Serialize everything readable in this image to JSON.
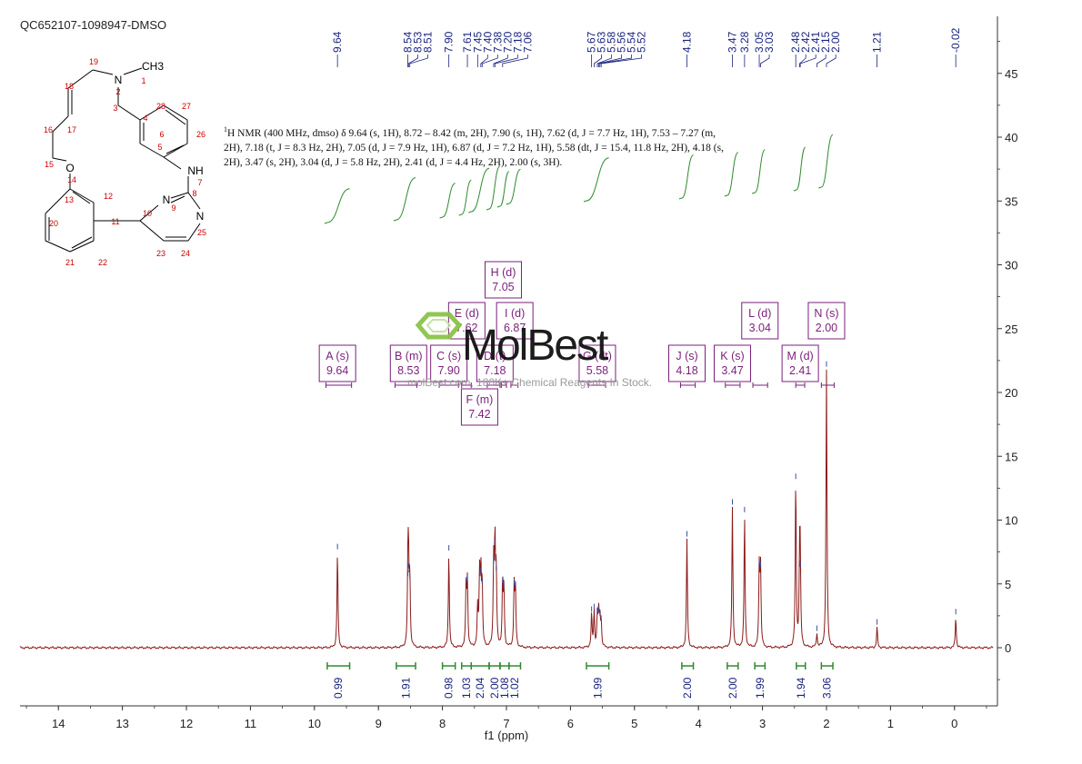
{
  "sample_id": "QC652107-1098947-DMSO",
  "description": {
    "nucleus_mark": "1",
    "text": "H NMR (400 MHz, dmso) δ 9.64 (s, 1H), 8.72 – 8.42 (m, 2H), 7.90 (s, 1H), 7.62 (d, J = 7.7 Hz, 1H), 7.53 – 7.27 (m, 2H), 7.18 (t, J = 8.3 Hz, 2H), 7.05 (d, J = 7.9 Hz, 1H), 6.87 (d, J = 7.2 Hz, 1H), 5.58 (dt, J = 15.4, 11.8 Hz, 2H), 4.18 (s, 2H), 3.47 (s, 2H), 3.04 (d, J = 5.8 Hz, 2H), 2.41 (d, J = 4.4 Hz, 2H), 2.00 (s, 3H)."
  },
  "watermark": {
    "brand": "MolBest",
    "tagline": "molBest.com, 180K+ Chemical Reagents In Stock."
  },
  "structure": {
    "atoms": [
      {
        "label": "CH3",
        "color": "#000000"
      },
      {
        "label": "N",
        "color": "#000000"
      },
      {
        "label": "NH",
        "color": "#000000"
      },
      {
        "label": "O",
        "color": "#000000"
      },
      {
        "label": "N",
        "color": "#000000"
      },
      {
        "label": "N",
        "color": "#000000"
      },
      {
        "label": "1",
        "color": "#cc0000"
      },
      {
        "label": "2",
        "color": "#cc0000"
      },
      {
        "label": "3",
        "color": "#cc0000"
      },
      {
        "label": "4",
        "color": "#cc0000"
      },
      {
        "label": "5",
        "color": "#cc0000"
      },
      {
        "label": "6",
        "color": "#cc0000"
      },
      {
        "label": "7",
        "color": "#cc0000"
      },
      {
        "label": "8",
        "color": "#cc0000"
      },
      {
        "label": "9",
        "color": "#cc0000"
      },
      {
        "label": "10",
        "color": "#cc0000"
      },
      {
        "label": "11",
        "color": "#cc0000"
      },
      {
        "label": "12",
        "color": "#cc0000"
      },
      {
        "label": "13",
        "color": "#cc0000"
      },
      {
        "label": "14",
        "color": "#cc0000"
      },
      {
        "label": "15",
        "color": "#cc0000"
      },
      {
        "label": "16",
        "color": "#cc0000"
      },
      {
        "label": "17",
        "color": "#cc0000"
      },
      {
        "label": "18",
        "color": "#cc0000"
      },
      {
        "label": "19",
        "color": "#cc0000"
      },
      {
        "label": "20",
        "color": "#cc0000"
      },
      {
        "label": "21",
        "color": "#cc0000"
      },
      {
        "label": "22",
        "color": "#cc0000"
      },
      {
        "label": "23",
        "color": "#cc0000"
      },
      {
        "label": "24",
        "color": "#cc0000"
      },
      {
        "label": "25",
        "color": "#cc0000"
      },
      {
        "label": "26",
        "color": "#cc0000"
      },
      {
        "label": "27",
        "color": "#cc0000"
      },
      {
        "label": "28",
        "color": "#cc0000"
      }
    ]
  },
  "chart_data": {
    "type": "line",
    "xlabel": "f1 (ppm)",
    "ylabel": "",
    "xlim": [
      14.6,
      -0.6
    ],
    "ylim": [
      -4.5,
      49
    ],
    "x_reversed": true,
    "x_ticks": [
      14,
      13,
      12,
      11,
      10,
      9,
      8,
      7,
      6,
      5,
      4,
      3,
      2,
      1,
      0
    ],
    "y_ticks": [
      0,
      5,
      10,
      15,
      20,
      25,
      30,
      35,
      40,
      45
    ],
    "colors": {
      "spectrum": "#8b1a1a",
      "integral": "#2e8b2e",
      "peak_label": "#1a237e",
      "multiplet": "#7b1f7b",
      "axis": "#333333"
    },
    "peak_labels": [
      "9.64",
      "8.54",
      "8.53",
      "8.51",
      "7.90",
      "7.61",
      "7.45",
      "7.40",
      "7.38",
      "7.20",
      "7.18",
      "7.06",
      "5.67",
      "5.63",
      "5.58",
      "5.56",
      "5.54",
      "5.52",
      "4.18",
      "3.47",
      "3.28",
      "3.05",
      "3.03",
      "2.48",
      "2.42",
      "2.41",
      "2.15",
      "2.00",
      "1.21",
      "-0.02"
    ],
    "series": [
      {
        "peaks": [
          {
            "shift": 9.64,
            "height": 7.5
          },
          {
            "shift": 8.54,
            "height": 5.4
          },
          {
            "shift": 8.53,
            "height": 6.0
          },
          {
            "shift": 8.51,
            "height": 5.2
          },
          {
            "shift": 7.9,
            "height": 7.4
          },
          {
            "shift": 7.63,
            "height": 4.9
          },
          {
            "shift": 7.61,
            "height": 5.0
          },
          {
            "shift": 7.45,
            "height": 3.1
          },
          {
            "shift": 7.42,
            "height": 5.4
          },
          {
            "shift": 7.4,
            "height": 5.6
          },
          {
            "shift": 7.38,
            "height": 4.8
          },
          {
            "shift": 7.2,
            "height": 6.4
          },
          {
            "shift": 7.18,
            "height": 7.8
          },
          {
            "shift": 7.16,
            "height": 5.8
          },
          {
            "shift": 7.06,
            "height": 4.9
          },
          {
            "shift": 7.04,
            "height": 4.5
          },
          {
            "shift": 6.88,
            "height": 4.7
          },
          {
            "shift": 6.86,
            "height": 4.6
          },
          {
            "shift": 5.67,
            "height": 2.6
          },
          {
            "shift": 5.63,
            "height": 2.8
          },
          {
            "shift": 5.58,
            "height": 2.4
          },
          {
            "shift": 5.56,
            "height": 2.6
          },
          {
            "shift": 5.54,
            "height": 2.3
          },
          {
            "shift": 5.52,
            "height": 1.9
          },
          {
            "shift": 4.18,
            "height": 8.5
          },
          {
            "shift": 3.47,
            "height": 11.0
          },
          {
            "shift": 3.28,
            "height": 10.4
          },
          {
            "shift": 3.05,
            "height": 6.3
          },
          {
            "shift": 3.03,
            "height": 6.1
          },
          {
            "shift": 2.48,
            "height": 13.0
          },
          {
            "shift": 2.42,
            "height": 6.2
          },
          {
            "shift": 2.41,
            "height": 6.1
          },
          {
            "shift": 2.15,
            "height": 1.1
          },
          {
            "shift": 2.0,
            "height": 21.8
          },
          {
            "shift": 1.21,
            "height": 1.6
          },
          {
            "shift": -0.02,
            "height": 2.4
          }
        ]
      }
    ],
    "integrals": [
      {
        "from": 9.8,
        "to": 9.45,
        "value": "0.99"
      },
      {
        "from": 8.72,
        "to": 8.42,
        "value": "1.91"
      },
      {
        "from": 8.0,
        "to": 7.8,
        "value": "0.98"
      },
      {
        "from": 7.7,
        "to": 7.55,
        "value": "1.03"
      },
      {
        "from": 7.55,
        "to": 7.27,
        "value": "2.04"
      },
      {
        "from": 7.27,
        "to": 7.1,
        "value": "2.00"
      },
      {
        "from": 7.1,
        "to": 6.96,
        "value": "1.08"
      },
      {
        "from": 6.96,
        "to": 6.78,
        "value": "1.02"
      },
      {
        "from": 5.75,
        "to": 5.4,
        "value": "1.99"
      },
      {
        "from": 4.26,
        "to": 4.08,
        "value": "2.00"
      },
      {
        "from": 3.55,
        "to": 3.38,
        "value": "2.00"
      },
      {
        "from": 3.12,
        "to": 2.96,
        "value": "1.99"
      },
      {
        "from": 2.47,
        "to": 2.33,
        "value": "1.94"
      },
      {
        "from": 2.08,
        "to": 1.9,
        "value": "3.06"
      }
    ],
    "multiplets": [
      {
        "letter": "A",
        "type": "s",
        "shift": "9.64",
        "center": 9.64,
        "from": 9.82,
        "to": 9.42,
        "row": 0
      },
      {
        "letter": "B",
        "type": "m",
        "shift": "8.53",
        "center": 8.53,
        "from": 8.74,
        "to": 8.4,
        "row": 0
      },
      {
        "letter": "C",
        "type": "s",
        "shift": "7.90",
        "center": 7.9,
        "from": 8.05,
        "to": 7.75,
        "row": 0
      },
      {
        "letter": "D",
        "type": "t",
        "shift": "7.18",
        "center": 7.18,
        "from": 7.3,
        "to": 7.08,
        "row": 0
      },
      {
        "letter": "E",
        "type": "d",
        "shift": "7.62",
        "center": 7.62,
        "from": 7.7,
        "to": 7.55,
        "row": 1
      },
      {
        "letter": "F",
        "type": "m",
        "shift": "7.42",
        "center": 7.42,
        "from": 7.55,
        "to": 7.27,
        "row": -1
      },
      {
        "letter": "G",
        "type": "dt",
        "shift": "5.58",
        "center": 5.58,
        "from": 5.72,
        "to": 5.45,
        "row": 0
      },
      {
        "letter": "H",
        "type": "d",
        "shift": "7.05",
        "center": 7.05,
        "from": 7.1,
        "to": 7.0,
        "row": 2
      },
      {
        "letter": "I",
        "type": "d",
        "shift": "6.87",
        "center": 6.87,
        "from": 6.93,
        "to": 6.82,
        "row": 1
      },
      {
        "letter": "J",
        "type": "s",
        "shift": "4.18",
        "center": 4.18,
        "from": 4.28,
        "to": 4.05,
        "row": 0
      },
      {
        "letter": "K",
        "type": "s",
        "shift": "3.47",
        "center": 3.47,
        "from": 3.58,
        "to": 3.35,
        "row": 0
      },
      {
        "letter": "L",
        "type": "d",
        "shift": "3.04",
        "center": 3.04,
        "from": 3.15,
        "to": 2.92,
        "row": 1
      },
      {
        "letter": "M",
        "type": "d",
        "shift": "2.41",
        "center": 2.41,
        "from": 2.48,
        "to": 2.34,
        "row": 0
      },
      {
        "letter": "N",
        "type": "s",
        "shift": "2.00",
        "center": 2.0,
        "from": 2.08,
        "to": 1.88,
        "row": 1
      }
    ]
  }
}
